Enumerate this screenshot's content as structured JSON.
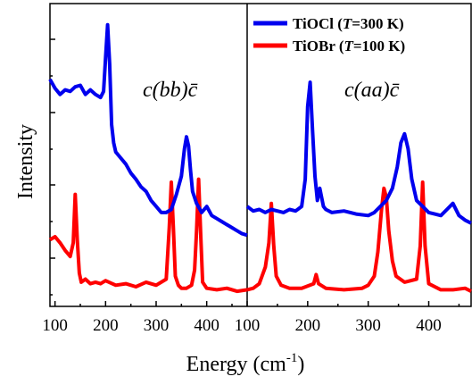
{
  "chart_data": [
    {
      "type": "line",
      "panel_label": "c(bb)c̄",
      "xlim": [
        90,
        480
      ],
      "xticks": [
        100,
        200,
        300,
        400
      ],
      "xtick_labels": [
        "100",
        "200",
        "300",
        "400"
      ],
      "ylim": [
        0,
        10
      ],
      "series": [
        {
          "name": "TiOCl (T=300 K)",
          "color": "#0000ee",
          "x": [
            90,
            100,
            110,
            120,
            130,
            140,
            150,
            160,
            170,
            180,
            190,
            196,
            200,
            204,
            208,
            212,
            216,
            220,
            230,
            240,
            250,
            260,
            270,
            280,
            290,
            300,
            310,
            320,
            330,
            340,
            350,
            356,
            360,
            364,
            368,
            372,
            380,
            390,
            400,
            410,
            420,
            430,
            440,
            450,
            460,
            470,
            480
          ],
          "y": [
            7.5,
            7.2,
            7.0,
            7.15,
            7.1,
            7.25,
            7.3,
            7.0,
            7.15,
            7.0,
            6.9,
            7.1,
            8.2,
            9.3,
            8.0,
            6.0,
            5.4,
            5.1,
            4.9,
            4.7,
            4.4,
            4.2,
            3.95,
            3.8,
            3.5,
            3.3,
            3.1,
            3.1,
            3.2,
            3.7,
            4.3,
            5.2,
            5.6,
            5.3,
            4.5,
            3.8,
            3.4,
            3.1,
            3.3,
            3.0,
            2.9,
            2.8,
            2.7,
            2.6,
            2.5,
            2.4,
            2.35
          ]
        },
        {
          "name": "TiOBr (T=100 K)",
          "color": "#ff0000",
          "x": [
            90,
            100,
            110,
            120,
            130,
            136,
            140,
            144,
            148,
            152,
            160,
            170,
            180,
            190,
            200,
            220,
            240,
            260,
            280,
            300,
            310,
            320,
            326,
            330,
            334,
            338,
            344,
            350,
            360,
            370,
            376,
            380,
            384,
            388,
            392,
            400,
            420,
            440,
            460,
            480
          ],
          "y": [
            2.2,
            2.3,
            2.1,
            1.85,
            1.65,
            2.1,
            3.7,
            2.2,
            1.1,
            0.8,
            0.9,
            0.75,
            0.8,
            0.75,
            0.85,
            0.7,
            0.75,
            0.65,
            0.8,
            0.7,
            0.8,
            0.9,
            2.6,
            4.1,
            2.6,
            1.0,
            0.7,
            0.6,
            0.6,
            0.7,
            1.2,
            2.5,
            4.2,
            2.4,
            0.8,
            0.6,
            0.55,
            0.6,
            0.5,
            0.55
          ]
        }
      ]
    },
    {
      "type": "line",
      "panel_label": "c(aa)c̄",
      "xlim": [
        100,
        470
      ],
      "xticks": [
        100,
        200,
        300,
        400
      ],
      "xtick_labels": [
        "100",
        "200",
        "300",
        "400"
      ],
      "ylim": [
        0,
        10
      ],
      "series": [
        {
          "name": "TiOCl (T=300 K)",
          "color": "#0000ee",
          "x": [
            100,
            110,
            120,
            130,
            140,
            150,
            160,
            170,
            180,
            190,
            196,
            200,
            204,
            208,
            212,
            216,
            220,
            226,
            230,
            240,
            260,
            280,
            300,
            310,
            320,
            330,
            340,
            348,
            354,
            360,
            366,
            372,
            380,
            390,
            400,
            410,
            420,
            430,
            440,
            450,
            460,
            470
          ],
          "y": [
            3.3,
            3.15,
            3.2,
            3.1,
            3.2,
            3.15,
            3.1,
            3.2,
            3.15,
            3.3,
            4.2,
            6.6,
            7.4,
            5.8,
            4.3,
            3.5,
            3.9,
            3.3,
            3.2,
            3.1,
            3.15,
            3.05,
            3.0,
            3.1,
            3.3,
            3.5,
            3.9,
            4.6,
            5.4,
            5.7,
            5.2,
            4.2,
            3.5,
            3.3,
            3.1,
            3.05,
            3.0,
            3.2,
            3.4,
            3.0,
            2.85,
            2.75
          ]
        },
        {
          "name": "TiOBr (T=100 K)",
          "color": "#ff0000",
          "x": [
            100,
            110,
            120,
            130,
            136,
            140,
            144,
            148,
            156,
            170,
            190,
            210,
            214,
            218,
            230,
            260,
            290,
            300,
            310,
            316,
            322,
            326,
            330,
            334,
            340,
            346,
            360,
            380,
            386,
            390,
            394,
            400,
            420,
            440,
            460,
            470
          ],
          "y": [
            0.55,
            0.6,
            0.75,
            1.3,
            2.1,
            3.4,
            2.0,
            1.0,
            0.7,
            0.6,
            0.6,
            0.75,
            1.05,
            0.75,
            0.6,
            0.55,
            0.6,
            0.7,
            1.0,
            1.8,
            3.2,
            3.9,
            3.6,
            2.5,
            1.5,
            1.0,
            0.8,
            0.9,
            2.0,
            4.1,
            2.0,
            0.75,
            0.55,
            0.55,
            0.6,
            0.5
          ]
        }
      ]
    }
  ],
  "axes": {
    "xlabel_text": "Energy (cm",
    "xlabel_sup": "-1",
    "xlabel_close": ")",
    "ylabel": "Intensity"
  },
  "legend": {
    "placement": "top-right",
    "items": [
      {
        "compound": "TiOCl",
        "temp_sym": "T",
        "temp_val": "=300 K",
        "color": "#0000ee"
      },
      {
        "compound": "TiOBr",
        "temp_sym": "T",
        "temp_val": "=100 K",
        "color": "#ff0000"
      }
    ]
  }
}
